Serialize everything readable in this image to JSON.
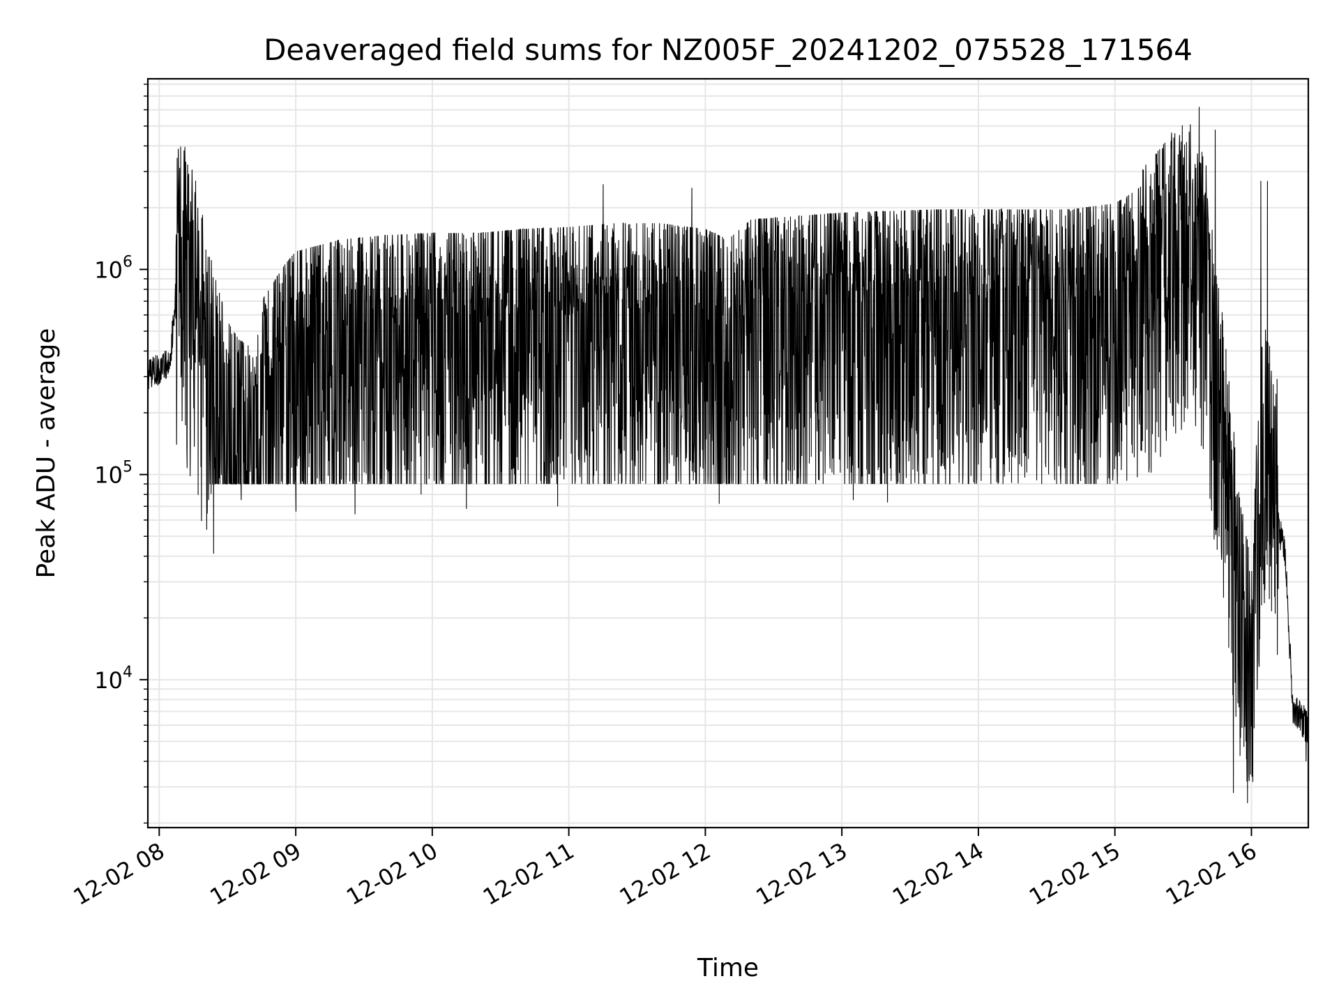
{
  "chart_data": {
    "type": "line",
    "title": "Deaveraged field sums for NZ005F_20241202_075528_171564",
    "xlabel": "Time",
    "ylabel": "Peak ADU - average",
    "xlim": [
      "12-02 07:55",
      "12-02 16:25"
    ],
    "ylim": [
      1900,
      8500000
    ],
    "yscale": "log",
    "grid": true,
    "line_color": "#000000",
    "x_ticks": [
      {
        "hour": 8,
        "label": "12-02 08"
      },
      {
        "hour": 9,
        "label": "12-02 09"
      },
      {
        "hour": 10,
        "label": "12-02 10"
      },
      {
        "hour": 11,
        "label": "12-02 11"
      },
      {
        "hour": 12,
        "label": "12-02 12"
      },
      {
        "hour": 13,
        "label": "12-02 13"
      },
      {
        "hour": 14,
        "label": "12-02 14"
      },
      {
        "hour": 15,
        "label": "12-02 15"
      },
      {
        "hour": 16,
        "label": "12-02 16"
      }
    ],
    "y_ticks": [
      {
        "value": 10000,
        "base": "10",
        "exp": "4"
      },
      {
        "value": 100000,
        "base": "10",
        "exp": "5"
      },
      {
        "value": 1000000,
        "base": "10",
        "exp": "6"
      }
    ],
    "series": [
      {
        "points": [
          [
            "12-02 07:55",
            380000
          ],
          [
            "12-02 08:00",
            400000
          ],
          [
            "12-02 08:05",
            450000
          ],
          [
            "12-02 08:08",
            1200000
          ],
          [
            "12-02 08:10",
            1000000
          ],
          [
            "12-02 08:15",
            700000
          ],
          [
            "12-02 08:20",
            400000
          ],
          [
            "12-02 08:25",
            250000
          ],
          [
            "12-02 08:30",
            160000
          ],
          [
            "12-02 08:35",
            130000
          ],
          [
            "12-02 08:40",
            120000
          ],
          [
            "12-02 08:45",
            200000
          ],
          [
            "12-02 08:55",
            300000
          ],
          [
            "12-02 09:00",
            350000
          ],
          [
            "12-02 09:20",
            400000
          ],
          [
            "12-02 09:40",
            420000
          ],
          [
            "12-02 10:00",
            430000
          ],
          [
            "12-02 10:20",
            430000
          ],
          [
            "12-02 10:40",
            450000
          ],
          [
            "12-02 11:00",
            460000
          ],
          [
            "12-02 11:20",
            480000
          ],
          [
            "12-02 11:40",
            480000
          ],
          [
            "12-02 12:00",
            450000
          ],
          [
            "12-02 12:10",
            400000
          ],
          [
            "12-02 12:20",
            500000
          ],
          [
            "12-02 12:40",
            520000
          ],
          [
            "12-02 13:00",
            540000
          ],
          [
            "12-02 13:20",
            550000
          ],
          [
            "12-02 13:40",
            560000
          ],
          [
            "12-02 14:00",
            560000
          ],
          [
            "12-02 14:20",
            560000
          ],
          [
            "12-02 14:40",
            560000
          ],
          [
            "12-02 15:00",
            600000
          ],
          [
            "12-02 15:10",
            700000
          ],
          [
            "12-02 15:20",
            900000
          ],
          [
            "12-02 15:30",
            1300000
          ],
          [
            "12-02 15:40",
            900000
          ],
          [
            "12-02 15:45",
            250000
          ],
          [
            "12-02 15:50",
            70000
          ],
          [
            "12-02 15:55",
            20000
          ],
          [
            "12-02 16:00",
            10000
          ],
          [
            "12-02 16:05",
            150000
          ],
          [
            "12-02 16:10",
            80000
          ],
          [
            "12-02 16:15",
            50000
          ],
          [
            "12-02 16:18",
            9000
          ],
          [
            "12-02 16:25",
            7000
          ]
        ],
        "peaks": [
          [
            "12-02 08:08",
            2300000
          ],
          [
            "12-02 11:15",
            2600000
          ],
          [
            "12-02 11:54",
            2500000
          ],
          [
            "12-02 15:37",
            6200000
          ],
          [
            "12-02 15:44",
            4800000
          ],
          [
            "12-02 16:04",
            2700000
          ],
          [
            "12-02 16:07",
            2700000
          ]
        ],
        "troughs": [
          [
            "12-02 08:36",
            75000
          ],
          [
            "12-02 09:00",
            66000
          ],
          [
            "12-02 09:26",
            64000
          ],
          [
            "12-02 09:55",
            80000
          ],
          [
            "12-02 10:15",
            68000
          ],
          [
            "12-02 10:55",
            70000
          ],
          [
            "12-02 12:06",
            72000
          ],
          [
            "12-02 13:05",
            75000
          ],
          [
            "12-02 13:20",
            73000
          ],
          [
            "12-02 15:52",
            2800.0
          ],
          [
            "12-02 15:59",
            3200
          ],
          [
            "12-02 16:24",
            4000
          ]
        ]
      }
    ]
  }
}
